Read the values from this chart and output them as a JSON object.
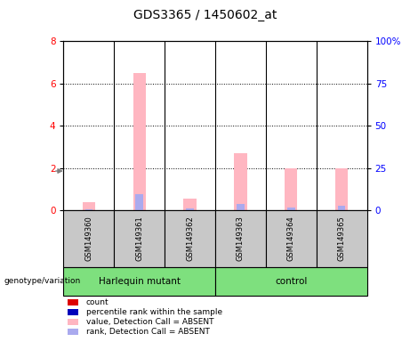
{
  "title": "GDS3365 / 1450602_at",
  "samples": [
    "GSM149360",
    "GSM149361",
    "GSM149362",
    "GSM149363",
    "GSM149364",
    "GSM149365"
  ],
  "pink_values": [
    0.4,
    6.5,
    0.55,
    2.7,
    2.0,
    2.0
  ],
  "blue_values": [
    0.05,
    0.75,
    0.08,
    0.3,
    0.12,
    0.2
  ],
  "ylim_left": [
    0,
    8
  ],
  "ylim_right": [
    0,
    100
  ],
  "yticks_left": [
    0,
    2,
    4,
    6,
    8
  ],
  "yticks_right": [
    0,
    25,
    50,
    75,
    100
  ],
  "ytick_labels_right": [
    "0",
    "25",
    "50",
    "75",
    "100%"
  ],
  "pink_color": "#FFB6C1",
  "blue_color": "#AAAAEE",
  "group_bg_color": "#C8C8C8",
  "harlequin_green": "#7EE07E",
  "legend_items": [
    {
      "label": "count",
      "color": "#DD0000"
    },
    {
      "label": "percentile rank within the sample",
      "color": "#0000BB"
    },
    {
      "label": "value, Detection Call = ABSENT",
      "color": "#FFB6C1"
    },
    {
      "label": "rank, Detection Call = ABSENT",
      "color": "#AAAAEE"
    }
  ]
}
